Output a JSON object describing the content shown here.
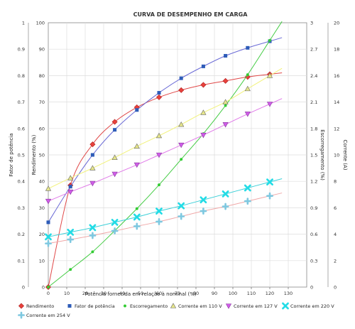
{
  "chart_data": {
    "type": "line",
    "title": "CURVA DE DESEMPENHO EM CARGA",
    "xlabel": "Potência fornecida em relação à nominal (%)",
    "xlim": [
      0,
      140
    ],
    "x_ticks": [
      "0",
      "10",
      "20",
      "30",
      "40",
      "50",
      "60",
      "70",
      "80",
      "90",
      "100",
      "110",
      "120",
      "130"
    ],
    "y_axes": {
      "fp": {
        "label": "Fator de potência",
        "lim": [
          0,
          1
        ],
        "ticks": [
          "0",
          "0.1",
          "0.2",
          "0.3",
          "0.4",
          "0.5",
          "0.6",
          "0.7",
          "0.8",
          "0.9",
          "1"
        ]
      },
      "rend": {
        "label": "Rendimento (%)",
        "lim": [
          0,
          100
        ],
        "ticks": [
          "0",
          "10",
          "20",
          "30",
          "40",
          "50",
          "60",
          "70",
          "80",
          "90",
          "100"
        ]
      },
      "esc": {
        "label": "Escorregamento (%)",
        "lim": [
          0,
          3
        ],
        "ticks": [
          "0",
          "0.3",
          "0.6",
          "0.9",
          "1.2",
          "1.5",
          "1.8",
          "2.1",
          "2.4",
          "2.7",
          "3"
        ]
      },
      "corr": {
        "label": "Corrente (A)",
        "lim": [
          0,
          20
        ],
        "ticks": [
          "0",
          "2",
          "4",
          "6",
          "8",
          "10",
          "12",
          "14",
          "16",
          "18",
          "20"
        ]
      }
    },
    "grid": true,
    "legend_position": "bottom",
    "series": [
      {
        "name": "Rendimento",
        "axis": "rend",
        "color": "#e8413c",
        "line_color": "#e04848",
        "marker": "diamond",
        "x": [
          0,
          12,
          24,
          36,
          48,
          60,
          72,
          84,
          96,
          108,
          120
        ],
        "y": [
          0,
          38.5,
          54,
          62.5,
          68,
          71.8,
          74.5,
          76.5,
          78,
          79.5,
          80.5
        ]
      },
      {
        "name": "Fator de potência",
        "axis": "fp",
        "color": "#2e5cb8",
        "line_color": "#6a6ad6",
        "marker": "square",
        "x": [
          0,
          12,
          24,
          36,
          48,
          60,
          72,
          84,
          96,
          108,
          120
        ],
        "y": [
          0.245,
          0.38,
          0.5,
          0.595,
          0.67,
          0.735,
          0.79,
          0.835,
          0.875,
          0.905,
          0.93
        ]
      },
      {
        "name": "Escorregamento",
        "axis": "esc",
        "color": "#33cc33",
        "line_color": "#44cc44",
        "marker": "circle",
        "x": [
          0,
          12,
          24,
          36,
          48,
          60,
          72,
          84,
          96,
          108,
          120
        ],
        "y": [
          0,
          0.2,
          0.4,
          0.64,
          0.89,
          1.16,
          1.45,
          1.74,
          2.06,
          2.41,
          2.8
        ]
      },
      {
        "name": "Corrente em 110 V",
        "axis": "corr",
        "color": "#e6e68a",
        "line_color": "#f2f27a",
        "marker": "triangle-up",
        "x": [
          0,
          12,
          24,
          36,
          48,
          60,
          72,
          84,
          96,
          108,
          120
        ],
        "y": [
          7.45,
          8.25,
          9.0,
          9.8,
          10.65,
          11.45,
          12.3,
          13.2,
          14.0,
          15.0,
          16.0
        ]
      },
      {
        "name": "Corrente em 127 V",
        "axis": "corr",
        "color": "#d05ce8",
        "line_color": "#e07ae8",
        "marker": "triangle-down",
        "x": [
          0,
          12,
          24,
          36,
          48,
          60,
          72,
          84,
          96,
          108,
          120
        ],
        "y": [
          6.5,
          7.2,
          7.85,
          8.55,
          9.25,
          10.0,
          10.75,
          11.5,
          12.3,
          13.1,
          13.85
        ]
      },
      {
        "name": "Corrente em 220 V",
        "axis": "corr",
        "color": "#22dce6",
        "line_color": "#3cd0d8",
        "marker": "x",
        "x": [
          0,
          12,
          24,
          36,
          48,
          60,
          72,
          84,
          96,
          108,
          120
        ],
        "y": [
          3.8,
          4.15,
          4.5,
          4.9,
          5.3,
          5.75,
          6.15,
          6.6,
          7.05,
          7.5,
          7.95
        ]
      },
      {
        "name": "Corrente em 254 V",
        "axis": "corr",
        "color": "#7ec8e0",
        "line_color": "#f0a8a8",
        "marker": "plus",
        "x": [
          0,
          12,
          24,
          36,
          48,
          60,
          72,
          84,
          96,
          108,
          120
        ],
        "y": [
          3.3,
          3.6,
          3.9,
          4.25,
          4.6,
          4.95,
          5.35,
          5.75,
          6.1,
          6.5,
          6.9
        ]
      }
    ]
  }
}
